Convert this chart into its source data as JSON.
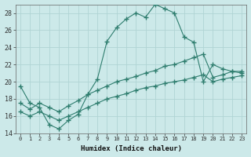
{
  "xlabel": "Humidex (Indice chaleur)",
  "xlim": [
    -0.5,
    23.5
  ],
  "ylim": [
    14,
    29
  ],
  "yticks": [
    14,
    16,
    18,
    20,
    22,
    24,
    26,
    28
  ],
  "xticks": [
    0,
    1,
    2,
    3,
    4,
    5,
    6,
    7,
    8,
    9,
    10,
    11,
    12,
    13,
    14,
    15,
    16,
    17,
    18,
    19,
    20,
    21,
    22,
    23
  ],
  "bg_color": "#cce9e9",
  "line_color": "#2e7d6e",
  "grid_color": "#b0d4d4",
  "line1_x": [
    0,
    1,
    2,
    3,
    4,
    5,
    6,
    7,
    8,
    9,
    10,
    11,
    12,
    13,
    14,
    15,
    16,
    17,
    18,
    19,
    20,
    21,
    22,
    23
  ],
  "line1_y": [
    19.5,
    17.5,
    17.0,
    15.0,
    14.5,
    15.5,
    16.2,
    18.5,
    20.3,
    24.7,
    26.3,
    27.3,
    28.0,
    27.5,
    29.0,
    28.5,
    28.0,
    25.2,
    24.6,
    20.0,
    22.0,
    21.5,
    21.2,
    21.2
  ],
  "line2_x": [
    0,
    1,
    2,
    3,
    4,
    5,
    6,
    7,
    8,
    9,
    10,
    11,
    12,
    13,
    14,
    15,
    16,
    17,
    18,
    19,
    20,
    21,
    22,
    23
  ],
  "line2_y": [
    17.5,
    16.8,
    17.5,
    17.0,
    16.5,
    17.2,
    17.8,
    18.5,
    19.0,
    19.5,
    20.0,
    20.3,
    20.6,
    21.0,
    21.3,
    21.8,
    22.0,
    22.4,
    22.8,
    23.2,
    20.5,
    20.8,
    21.2,
    21.0
  ],
  "line3_x": [
    0,
    1,
    2,
    3,
    4,
    5,
    6,
    7,
    8,
    9,
    10,
    11,
    12,
    13,
    14,
    15,
    16,
    17,
    18,
    19,
    20,
    21,
    22,
    23
  ],
  "line3_y": [
    16.5,
    16.0,
    16.5,
    16.0,
    15.5,
    16.0,
    16.5,
    17.0,
    17.5,
    18.0,
    18.3,
    18.6,
    19.0,
    19.3,
    19.5,
    19.8,
    20.0,
    20.2,
    20.5,
    20.8,
    20.0,
    20.3,
    20.5,
    20.7
  ]
}
